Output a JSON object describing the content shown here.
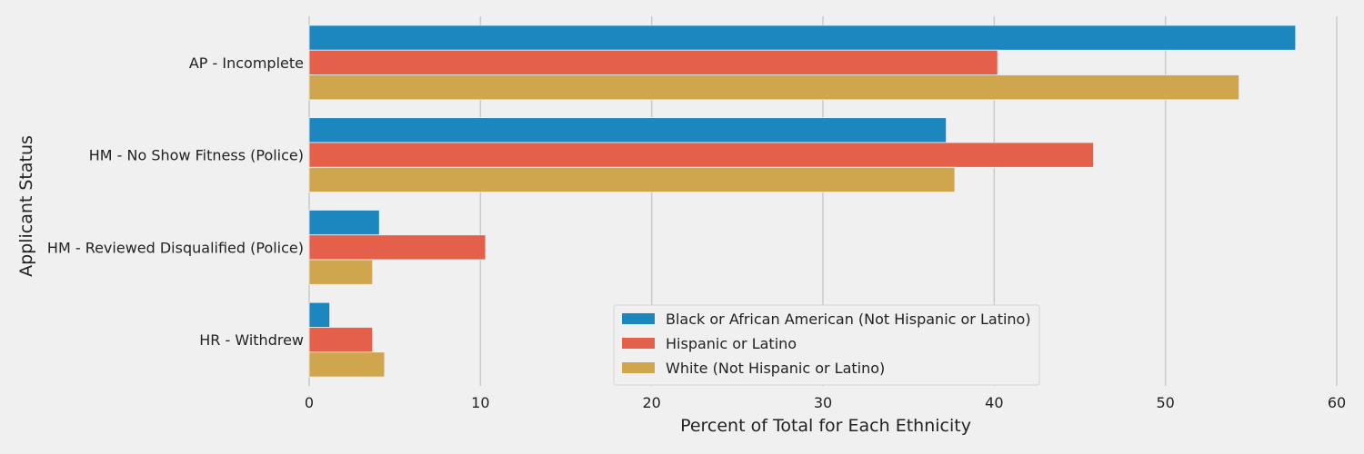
{
  "chart_data": {
    "type": "bar",
    "orientation": "horizontal",
    "title": "",
    "xlabel": "Percent of Total for Each Ethnicity",
    "ylabel": "Applicant Status",
    "xlim": [
      0,
      60
    ],
    "xticks": [
      "0",
      "10",
      "20",
      "30",
      "40",
      "50",
      "60"
    ],
    "grid": true,
    "legend_position": "lower-center",
    "categories": [
      "AP - Incomplete",
      "HM - No Show Fitness (Police)",
      "HM - Reviewed Disqualified (Police)",
      "HR - Withdrew"
    ],
    "series": [
      {
        "name": "Black or African American (Not Hispanic or Latino)",
        "color": "#1c86bf",
        "values": [
          57.6,
          37.2,
          4.1,
          1.2
        ]
      },
      {
        "name": "Hispanic or Latino",
        "color": "#e5604a",
        "values": [
          40.2,
          45.8,
          10.3,
          3.7
        ]
      },
      {
        "name": "White (Not Hispanic or Latino)",
        "color": "#cfa54e",
        "values": [
          54.3,
          37.7,
          3.7,
          4.4
        ]
      }
    ],
    "background_color": "#f0f0f0",
    "grid_color": "#cbcbcb"
  }
}
